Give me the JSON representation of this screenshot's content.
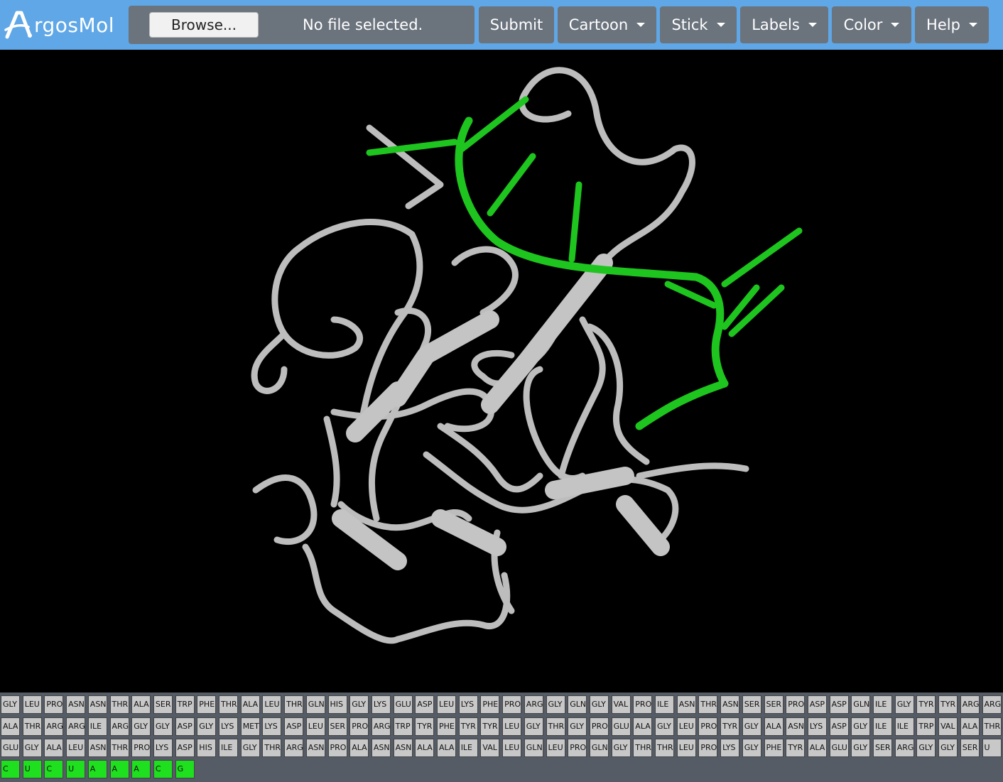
{
  "brand": {
    "name": "rgosMol",
    "logo_letter": "A"
  },
  "file": {
    "browse_label": "Browse...",
    "status": "No file selected."
  },
  "nav": [
    {
      "label": "Submit",
      "dropdown": false
    },
    {
      "label": "Cartoon",
      "dropdown": true
    },
    {
      "label": "Stick",
      "dropdown": true
    },
    {
      "label": "Labels",
      "dropdown": true
    },
    {
      "label": "Color",
      "dropdown": true
    },
    {
      "label": "Help",
      "dropdown": true
    }
  ],
  "colors": {
    "navbar": "#5fa7e6",
    "button": "#6b737d",
    "protein": "#c8c8c8",
    "nucleic": "#1ee01e",
    "viewer_bg": "#000000"
  },
  "sequence": {
    "rows": [
      [
        "GLY",
        "LEU",
        "PRO",
        "ASN",
        "ASN",
        "THR",
        "ALA",
        "SER",
        "TRP",
        "PHE",
        "THR",
        "ALA",
        "LEU",
        "THR",
        "GLN",
        "HIS",
        "GLY",
        "LYS",
        "GLU",
        "ASP",
        "LEU",
        "LYS",
        "PHE",
        "PRO",
        "ARG",
        "GLY",
        "GLN",
        "GLY",
        "VAL",
        "PRO",
        "ILE",
        "ASN",
        "THR",
        "ASN",
        "SER",
        "SER",
        "PRO",
        "ASP",
        "ASP",
        "GLN",
        "ILE",
        "GLY",
        "TYR",
        "TYR",
        "ARG",
        "ARG"
      ],
      [
        "ALA",
        "THR",
        "ARG",
        "ARG",
        "ILE",
        "ARG",
        "GLY",
        "GLY",
        "ASP",
        "GLY",
        "LYS",
        "MET",
        "LYS",
        "ASP",
        "LEU",
        "SER",
        "PRO",
        "ARG",
        "TRP",
        "TYR",
        "PHE",
        "TYR",
        "TYR",
        "LEU",
        "GLY",
        "THR",
        "GLY",
        "PRO",
        "GLU",
        "ALA",
        "GLY",
        "LEU",
        "PRO",
        "TYR",
        "GLY",
        "ALA",
        "ASN",
        "LYS",
        "ASP",
        "GLY",
        "ILE",
        "ILE",
        "TRP",
        "VAL",
        "ALA",
        "THR"
      ],
      [
        "GLU",
        "GLY",
        "ALA",
        "LEU",
        "ASN",
        "THR",
        "PRO",
        "LYS",
        "ASP",
        "HIS",
        "ILE",
        "GLY",
        "THR",
        "ARG",
        "ASN",
        "PRO",
        "ALA",
        "ASN",
        "ASN",
        "ALA",
        "ALA",
        "ILE",
        "VAL",
        "LEU",
        "GLN",
        "LEU",
        "PRO",
        "GLN",
        "GLY",
        "THR",
        "THR",
        "LEU",
        "PRO",
        "LYS",
        "GLY",
        "PHE",
        "TYR",
        "ALA",
        "GLU",
        "GLY",
        "SER",
        "ARG",
        "GLY",
        "GLY",
        "SER",
        "U"
      ],
      [
        "C",
        "U",
        "C",
        "U",
        "A",
        "A",
        "A",
        "C",
        "G"
      ]
    ]
  }
}
